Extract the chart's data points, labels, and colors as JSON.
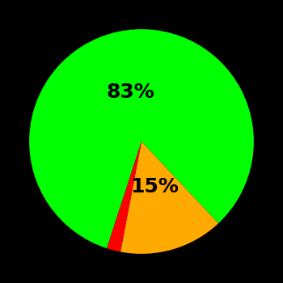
{
  "slices": [
    83,
    15,
    2
  ],
  "colors": [
    "#00ff00",
    "#ffaa00",
    "#ff0000"
  ],
  "labels": [
    "83%",
    "15%",
    ""
  ],
  "background_color": "#000000",
  "startangle": 252,
  "label_fontsize": 18,
  "label_fontweight": "bold",
  "green_label_r": 0.45,
  "yellow_label_r": 0.42
}
